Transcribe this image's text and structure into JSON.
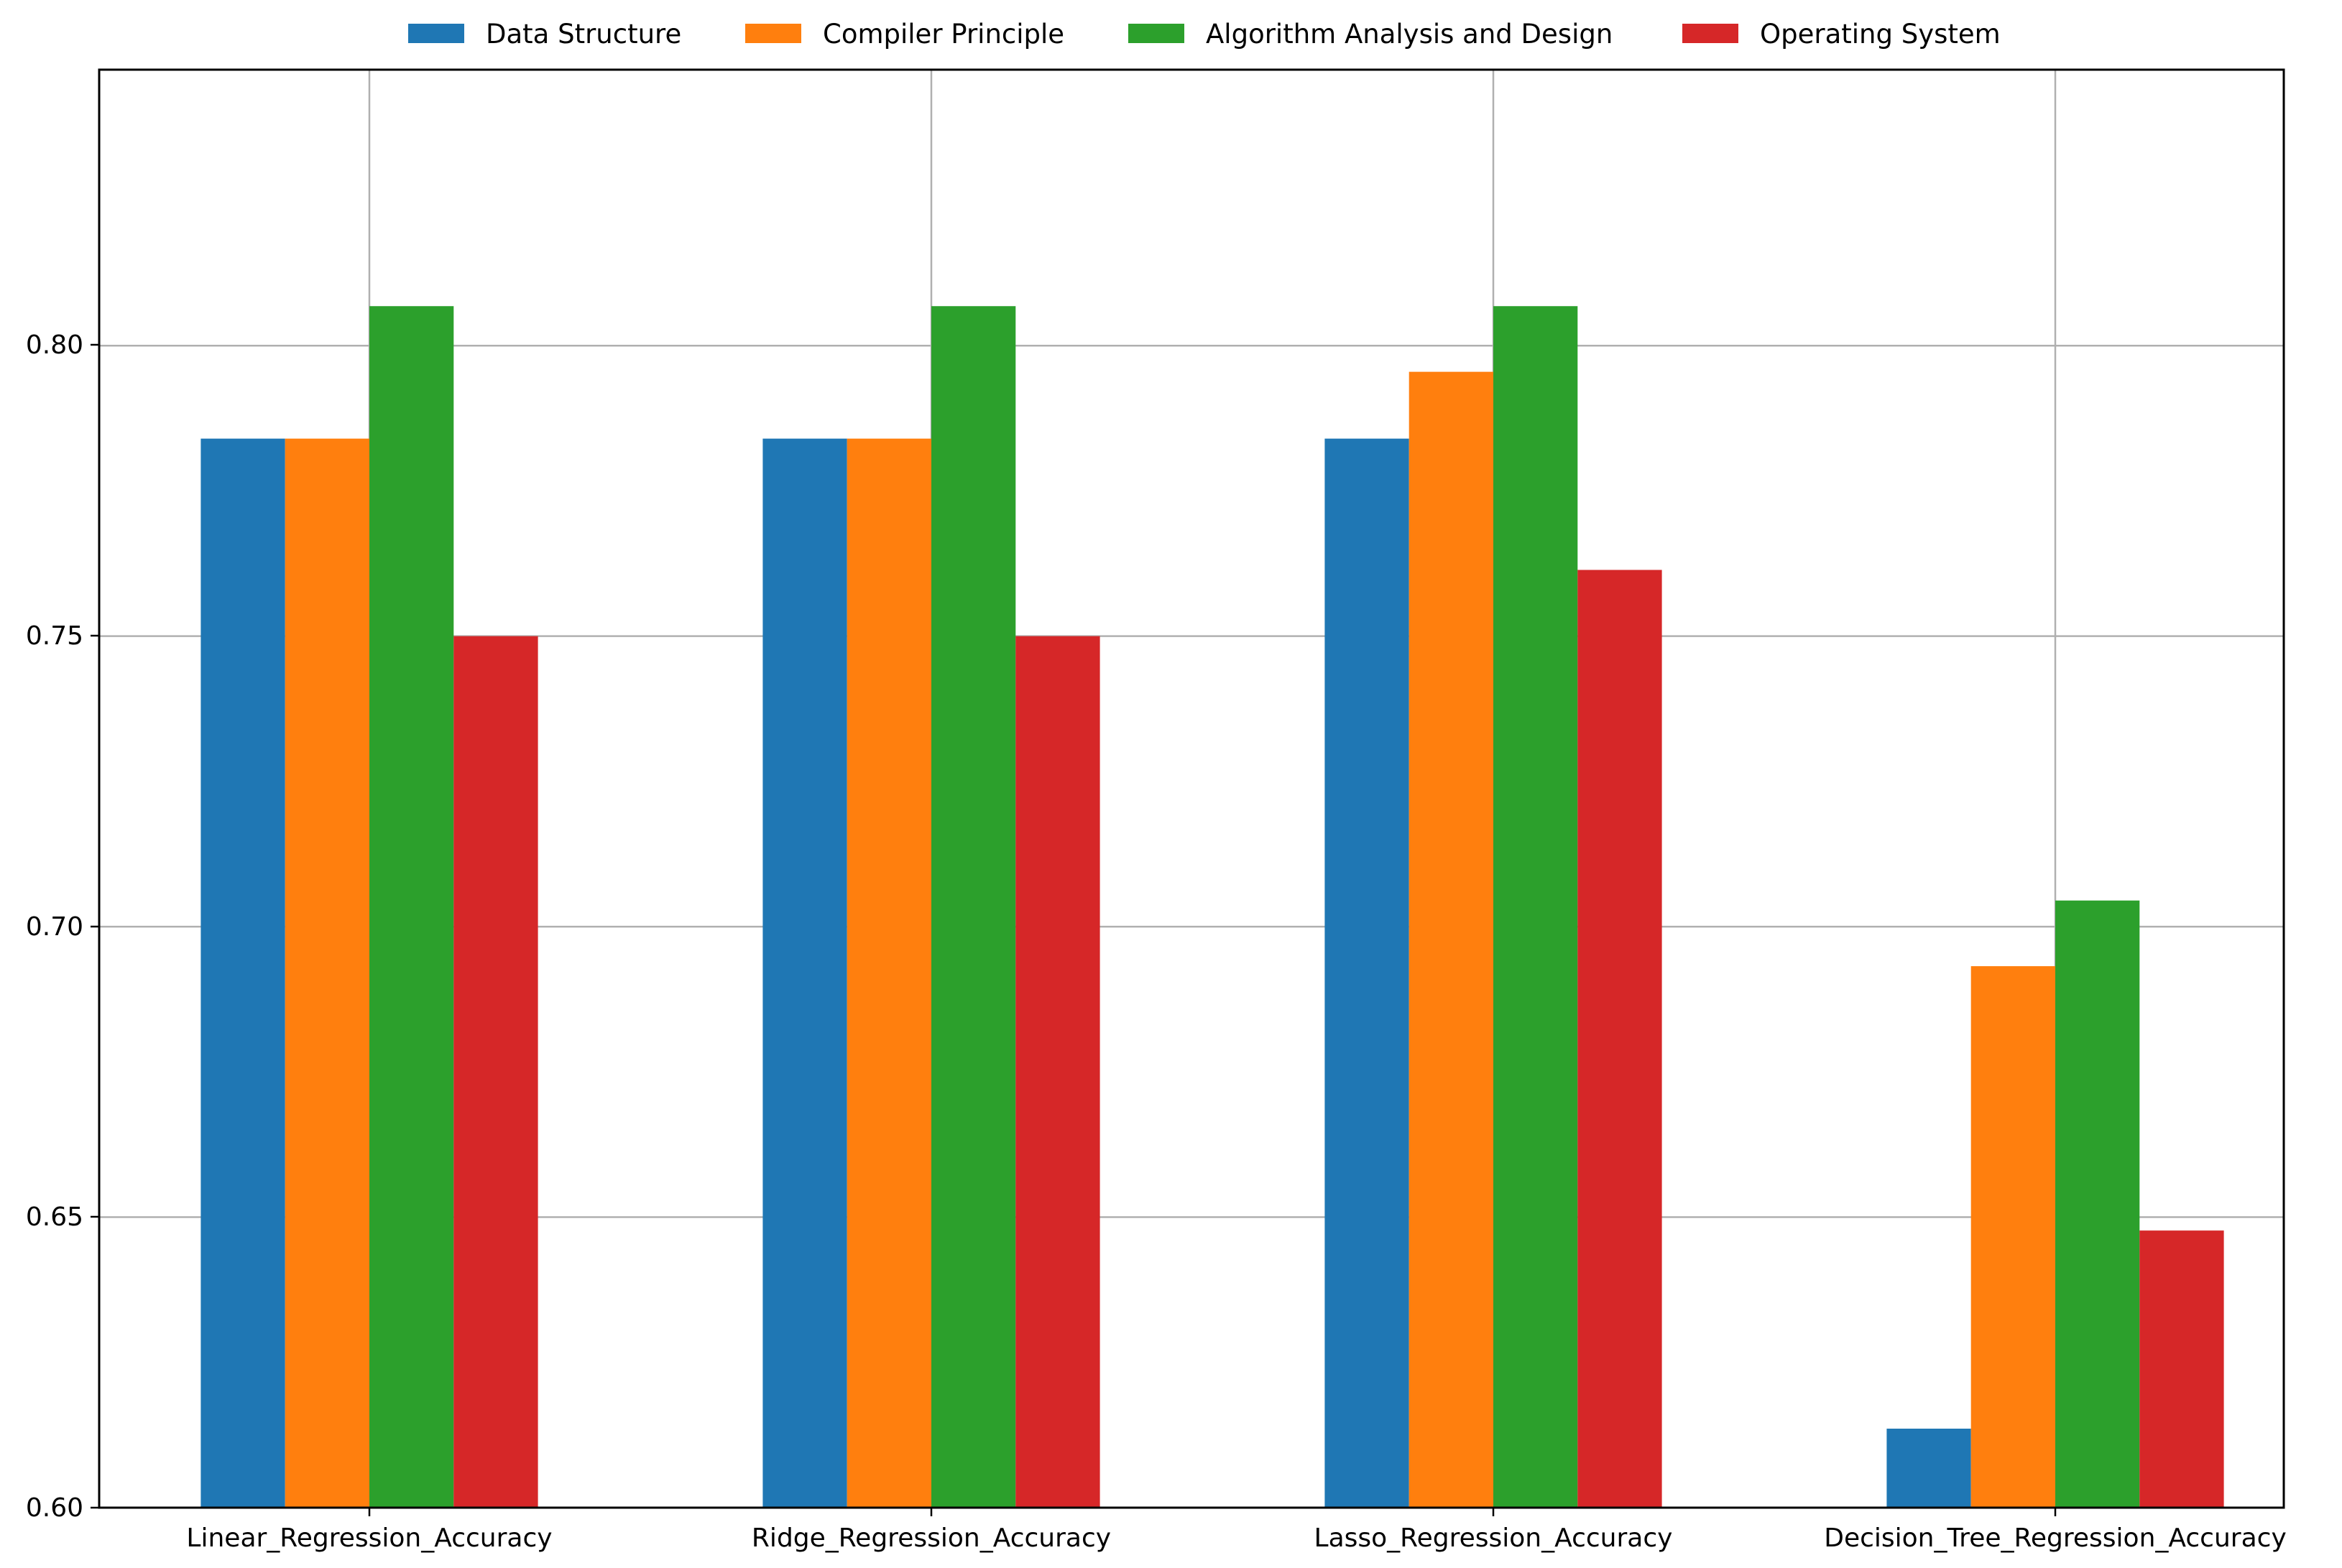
{
  "chart_data": {
    "type": "bar",
    "categories": [
      "Linear_Regression_Accuracy",
      "Ridge_Regression_Accuracy",
      "Lasso_Regression_Accuracy",
      "Decision_Tree_Regression_Accuracy"
    ],
    "series": [
      {
        "name": "Data Structure",
        "color": "#1f77b4",
        "values": [
          0.784,
          0.784,
          0.784,
          0.6136
        ]
      },
      {
        "name": "Compiler Principle",
        "color": "#ff7f0e",
        "values": [
          0.784,
          0.784,
          0.7955,
          0.6932
        ]
      },
      {
        "name": "Algorithm Analysis and Design",
        "color": "#2ca02c",
        "values": [
          0.8068,
          0.8068,
          0.8068,
          0.7045
        ]
      },
      {
        "name": "Operating System",
        "color": "#d62728",
        "values": [
          0.75,
          0.75,
          0.7614,
          0.6477
        ]
      }
    ],
    "yticks": [
      "0.60",
      "0.65",
      "0.70",
      "0.75",
      "0.80"
    ],
    "ytick_values": [
      0.6,
      0.65,
      0.7,
      0.75,
      0.8
    ],
    "ylim": [
      0.6,
      0.8475
    ],
    "grid": true,
    "legend": "top-center",
    "title": "",
    "xlabel": "",
    "ylabel": ""
  }
}
